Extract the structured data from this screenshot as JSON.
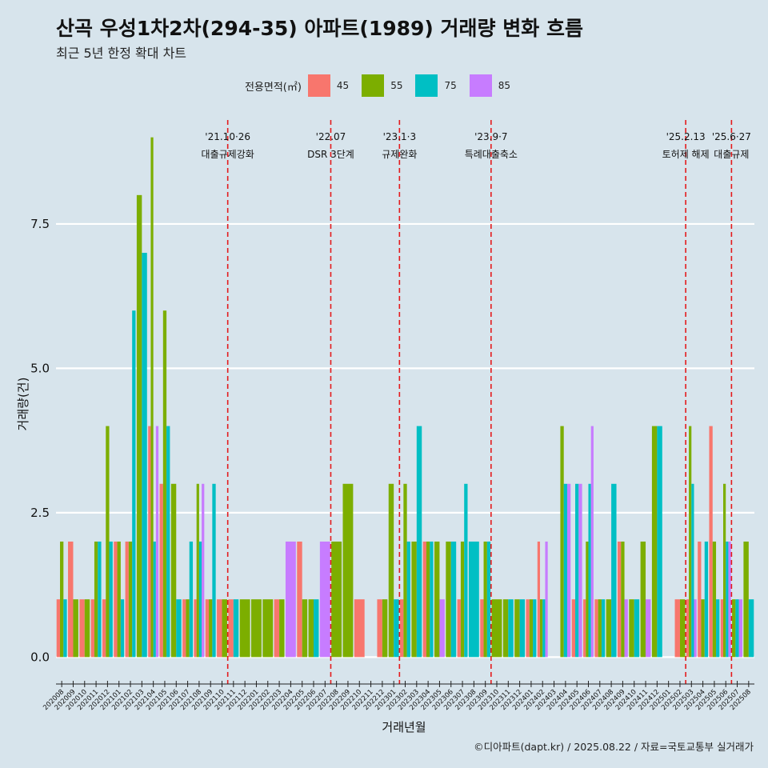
{
  "header": {
    "title": "산곡 우성1차2차(294-35) 아파트(1989) 거래량 변화 흐름",
    "subtitle": "최근 5년 한정 확대 차트"
  },
  "legend": {
    "title": "전용면적(㎡)",
    "items": [
      {
        "label": "45",
        "color": "#f8766d"
      },
      {
        "label": "55",
        "color": "#7cae00"
      },
      {
        "label": "75",
        "color": "#00bfc4"
      },
      {
        "label": "85",
        "color": "#c77cff"
      }
    ]
  },
  "caption": "©디아파트(dapt.kr) / 2025.08.22 / 자료=국토교통부 실거래가",
  "chart_data": {
    "type": "bar",
    "xlabel": "거래년월",
    "ylabel": "거래량(건)",
    "ylim": [
      -0.3,
      9.3
    ],
    "yticks": [
      "0.0",
      "2.5",
      "5.0",
      "7.5"
    ],
    "grid": true,
    "legend_position": "top",
    "categories": [
      "202008",
      "202009",
      "202010",
      "202011",
      "202012",
      "202101",
      "202102",
      "202103",
      "202104",
      "202105",
      "202106",
      "202107",
      "202108",
      "202109",
      "202110",
      "202111",
      "202112",
      "202201",
      "202202",
      "202203",
      "202204",
      "202205",
      "202206",
      "202207",
      "202208",
      "202209",
      "202210",
      "202211",
      "202212",
      "202301",
      "202302",
      "202303",
      "202304",
      "202305",
      "202306",
      "202307",
      "202308",
      "202309",
      "202310",
      "202311",
      "202312",
      "202401",
      "202402",
      "202403",
      "202404",
      "202405",
      "202406",
      "202407",
      "202408",
      "202409",
      "202410",
      "202411",
      "202412",
      "202501",
      "202502",
      "202503",
      "202504",
      "202505",
      "202506",
      "202507",
      "202508"
    ],
    "series": [
      {
        "name": "45",
        "color": "#f8766d",
        "values": [
          1,
          2,
          1,
          1,
          1,
          2,
          2,
          0,
          4,
          3,
          0,
          1,
          1,
          1,
          1,
          1,
          0,
          0,
          0,
          1,
          0,
          2,
          0,
          0,
          0,
          0,
          1,
          0,
          1,
          0,
          1,
          0,
          2,
          0,
          0,
          1,
          0,
          1,
          0,
          0,
          0,
          1,
          2,
          0,
          0,
          1,
          1,
          1,
          0,
          2,
          0,
          0,
          0,
          0,
          1,
          1,
          2,
          4,
          1,
          0,
          0
        ]
      },
      {
        "name": "55",
        "color": "#7cae00",
        "values": [
          2,
          1,
          1,
          2,
          4,
          2,
          2,
          8,
          9,
          6,
          3,
          1,
          3,
          1,
          1,
          0,
          1,
          1,
          1,
          1,
          0,
          1,
          1,
          0,
          2,
          3,
          0,
          0,
          1,
          3,
          3,
          2,
          2,
          2,
          2,
          2,
          0,
          2,
          1,
          1,
          1,
          1,
          1,
          0,
          4,
          0,
          2,
          1,
          1,
          2,
          1,
          2,
          4,
          0,
          1,
          4,
          1,
          2,
          3,
          1,
          2
        ]
      },
      {
        "name": "75",
        "color": "#00bfc4",
        "values": [
          1,
          0,
          0,
          2,
          2,
          1,
          6,
          7,
          2,
          4,
          1,
          2,
          2,
          3,
          0,
          1,
          0,
          0,
          0,
          0,
          0,
          0,
          1,
          0,
          0,
          0,
          0,
          0,
          0,
          1,
          2,
          4,
          2,
          0,
          2,
          3,
          2,
          2,
          0,
          1,
          1,
          1,
          1,
          0,
          3,
          3,
          3,
          1,
          3,
          0,
          1,
          0,
          4,
          0,
          0,
          3,
          2,
          1,
          2,
          1,
          1
        ]
      },
      {
        "name": "85",
        "color": "#c77cff",
        "values": [
          0,
          0,
          0,
          0,
          0,
          0,
          0,
          0,
          4,
          0,
          0,
          0,
          3,
          0,
          0,
          0,
          0,
          0,
          0,
          0,
          2,
          0,
          0,
          2,
          0,
          0,
          0,
          0,
          0,
          0,
          0,
          0,
          0,
          1,
          0,
          0,
          0,
          0,
          0,
          0,
          0,
          0,
          2,
          0,
          3,
          3,
          4,
          0,
          0,
          1,
          0,
          1,
          0,
          0,
          0,
          1,
          0,
          0,
          2,
          1,
          0
        ]
      }
    ],
    "events": [
      {
        "date_line1": "'21.10·26",
        "date_line2": "대출규제강화",
        "at": "202110"
      },
      {
        "date_line1": "'22.07",
        "date_line2": "DSR 3단계",
        "at": "202207"
      },
      {
        "date_line1": "'23.1·3",
        "date_line2": "규제완화",
        "at": "202301"
      },
      {
        "date_line1": "'23.9·7",
        "date_line2": "특례대출축소",
        "at": "202309"
      },
      {
        "date_line1": "'25.2.13",
        "date_line2": "토허제 해제",
        "at": "202502"
      },
      {
        "date_line1": "'25.6·27",
        "date_line2": "대출규제",
        "at": "202506"
      }
    ]
  }
}
